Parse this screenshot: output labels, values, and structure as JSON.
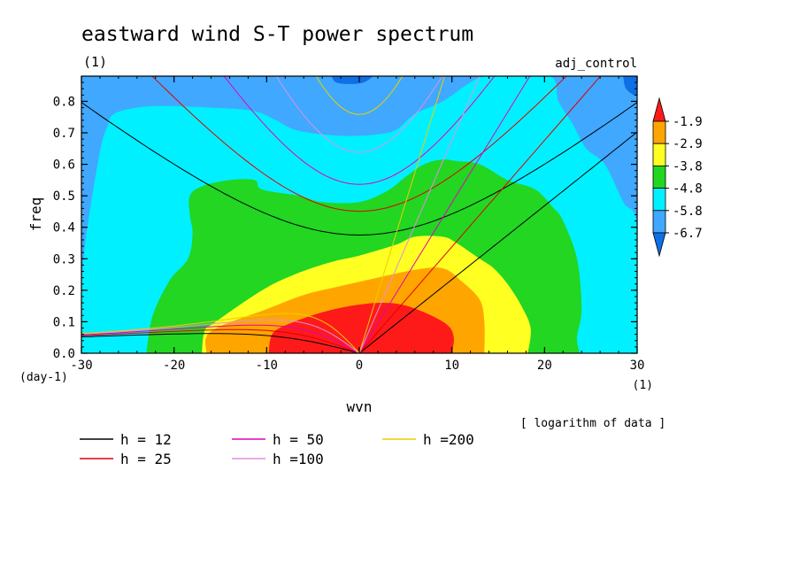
{
  "chart_data": {
    "type": "heatmap",
    "title": "eastward wind S-T power spectrum",
    "title_unit": "(1)",
    "run_label": "adj_control",
    "xlabel": "wvn",
    "x_unit": "(1)",
    "ylabel": "freq",
    "y_unit": "(day-1)",
    "xlim": [
      -30,
      30
    ],
    "ylim": [
      0,
      0.88
    ],
    "x_ticks": [
      -30,
      -20,
      -10,
      0,
      10,
      20,
      30
    ],
    "x_tick_labels": [
      "-30",
      "-20",
      "-10",
      "0",
      "10",
      "20",
      "30"
    ],
    "y_ticks": [
      0.0,
      0.1,
      0.2,
      0.3,
      0.4,
      0.5,
      0.6,
      0.7,
      0.8
    ],
    "y_tick_labels": [
      "0.0",
      "0.1",
      "0.2",
      "0.3",
      "0.4",
      "0.5",
      "0.6",
      "0.7",
      "0.8"
    ],
    "colorbar": {
      "levels": [
        -6.7,
        -5.8,
        -4.8,
        -3.8,
        -2.9,
        -1.9
      ],
      "level_labels": [
        "-6.7",
        "-5.8",
        "-4.8",
        "-3.8",
        "-2.9",
        "-1.9"
      ],
      "colors": [
        "#0f6fe6",
        "#40a8ff",
        "#00f0ff",
        "#22d622",
        "#ffff22",
        "#ffa500",
        "#ff1a1a"
      ],
      "note": "[ logarithm of data ]"
    },
    "dispersion_curves": [
      {
        "label": "h = 12",
        "h": 12,
        "color": "#000000"
      },
      {
        "label": "h = 25",
        "h": 25,
        "color": "#e00000"
      },
      {
        "label": "h = 50",
        "h": 50,
        "color": "#e000c0"
      },
      {
        "label": "h =100",
        "h": 100,
        "color": "#e090e0"
      },
      {
        "label": "h =200",
        "h": 200,
        "color": "#e8d000"
      }
    ],
    "contour_bands": [
      {
        "level_index": 1,
        "points": [
          [
            -30,
            0
          ],
          [
            30,
            0
          ],
          [
            30,
            0.88
          ],
          [
            -30,
            0.88
          ]
        ]
      },
      {
        "level_index": 0,
        "points": [
          [
            -3,
            0.88
          ],
          [
            -2.5,
            0.86
          ],
          [
            -1,
            0.855
          ],
          [
            0.5,
            0.86
          ],
          [
            1.5,
            0.88
          ]
        ]
      },
      {
        "level_index": 0,
        "points": [
          [
            28.5,
            0.88
          ],
          [
            28.8,
            0.84
          ],
          [
            30,
            0.82
          ],
          [
            30,
            0.88
          ]
        ]
      },
      {
        "level_index": 2,
        "points": [
          [
            -30,
            0.2
          ],
          [
            -29.5,
            0.37
          ],
          [
            -28,
            0.64
          ],
          [
            -27.2,
            0.72
          ],
          [
            -26.5,
            0.76
          ],
          [
            -24,
            0.78
          ],
          [
            -21,
            0.785
          ],
          [
            -16,
            0.78
          ],
          [
            -11.5,
            0.77
          ],
          [
            -9,
            0.74
          ],
          [
            -7,
            0.71
          ],
          [
            -4,
            0.695
          ],
          [
            -1,
            0.69
          ],
          [
            2,
            0.695
          ],
          [
            4,
            0.71
          ],
          [
            6,
            0.76
          ],
          [
            9,
            0.8
          ],
          [
            12,
            0.86
          ],
          [
            14,
            0.88
          ],
          [
            20.5,
            0.88
          ],
          [
            21.5,
            0.8
          ],
          [
            23,
            0.73
          ],
          [
            24.5,
            0.65
          ],
          [
            26.5,
            0.6
          ],
          [
            28.5,
            0.48
          ],
          [
            30,
            0.4
          ],
          [
            30,
            0
          ],
          [
            -30,
            0
          ]
        ]
      },
      {
        "level_index": 3,
        "points": [
          [
            -23,
            0.0
          ],
          [
            -22.3,
            0.12
          ],
          [
            -20.5,
            0.23
          ],
          [
            -18.5,
            0.3
          ],
          [
            -18,
            0.38
          ],
          [
            -18.3,
            0.44
          ],
          [
            -18.3,
            0.5
          ],
          [
            -17,
            0.53
          ],
          [
            -14,
            0.55
          ],
          [
            -11.3,
            0.55
          ],
          [
            -10.5,
            0.52
          ],
          [
            -6.5,
            0.5
          ],
          [
            -4,
            0.48
          ],
          [
            0,
            0.48
          ],
          [
            3,
            0.515
          ],
          [
            5,
            0.56
          ],
          [
            7,
            0.6
          ],
          [
            9,
            0.615
          ],
          [
            10.5,
            0.61
          ],
          [
            13,
            0.6
          ],
          [
            16,
            0.55
          ],
          [
            19,
            0.52
          ],
          [
            21,
            0.46
          ],
          [
            22,
            0.42
          ],
          [
            23.5,
            0.3
          ],
          [
            24,
            0.14
          ],
          [
            23.5,
            0.05
          ],
          [
            23.8,
            0.0
          ]
        ]
      },
      {
        "level_index": 4,
        "points": [
          [
            -17,
            0.0
          ],
          [
            -16.7,
            0.07
          ],
          [
            -15.5,
            0.1
          ],
          [
            -10.5,
            0.2
          ],
          [
            -7,
            0.25
          ],
          [
            -3,
            0.29
          ],
          [
            0,
            0.31
          ],
          [
            4,
            0.345
          ],
          [
            6,
            0.37
          ],
          [
            9,
            0.37
          ],
          [
            10.5,
            0.35
          ],
          [
            13,
            0.3
          ],
          [
            14.5,
            0.27
          ],
          [
            16,
            0.22
          ],
          [
            17.5,
            0.15
          ],
          [
            18.5,
            0.08
          ],
          [
            18.2,
            0.0
          ]
        ]
      },
      {
        "level_index": 5,
        "points": [
          [
            -16.5,
            0.0
          ],
          [
            -16,
            0.07
          ],
          [
            -10,
            0.14
          ],
          [
            -6,
            0.185
          ],
          [
            -2.5,
            0.21
          ],
          [
            2,
            0.24
          ],
          [
            6,
            0.265
          ],
          [
            9,
            0.27
          ],
          [
            11,
            0.23
          ],
          [
            13,
            0.17
          ],
          [
            13.5,
            0.1
          ],
          [
            13.5,
            0.0
          ]
        ]
      },
      {
        "level_index": 6,
        "points": [
          [
            -9.8,
            0.0
          ],
          [
            -9.3,
            0.065
          ],
          [
            -7,
            0.1
          ],
          [
            -4,
            0.13
          ],
          [
            -1,
            0.15
          ],
          [
            2,
            0.16
          ],
          [
            4.5,
            0.155
          ],
          [
            7,
            0.13
          ],
          [
            9.5,
            0.09
          ],
          [
            10.2,
            0.05
          ],
          [
            10,
            0.0
          ]
        ]
      }
    ]
  }
}
